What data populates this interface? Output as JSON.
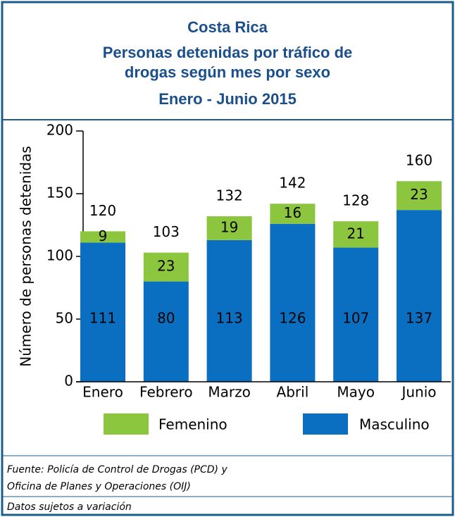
{
  "chart_data": {
    "type": "stacked_bar",
    "title": "Costa Rica",
    "subtitle": [
      "Personas detenidas  por tráfico de",
      "drogas según mes por sexo"
    ],
    "period": "Enero - Junio 2015",
    "y_label": "Número de personas detenidas",
    "categories": [
      "Enero",
      "Febrero",
      "Marzo",
      "Abril",
      "Mayo",
      "Junio"
    ],
    "series": [
      {
        "name": "Masculino",
        "color": "#0a6fc0",
        "values": [
          111,
          80,
          113,
          126,
          107,
          137
        ]
      },
      {
        "name": "Femenino",
        "color": "#8cc63f",
        "values": [
          9,
          23,
          19,
          16,
          21,
          23
        ]
      }
    ],
    "totals": [
      120,
      103,
      132,
      142,
      128,
      160
    ],
    "ylim": [
      0,
      200
    ],
    "yticks": [
      0,
      50,
      100,
      150,
      200
    ],
    "notes": [
      "Fuente: Policía de Control de Drogas (PCD) y",
      "Oficina de Planes y Operaciones (OIJ)",
      "Datos sujetos a variación"
    ]
  }
}
